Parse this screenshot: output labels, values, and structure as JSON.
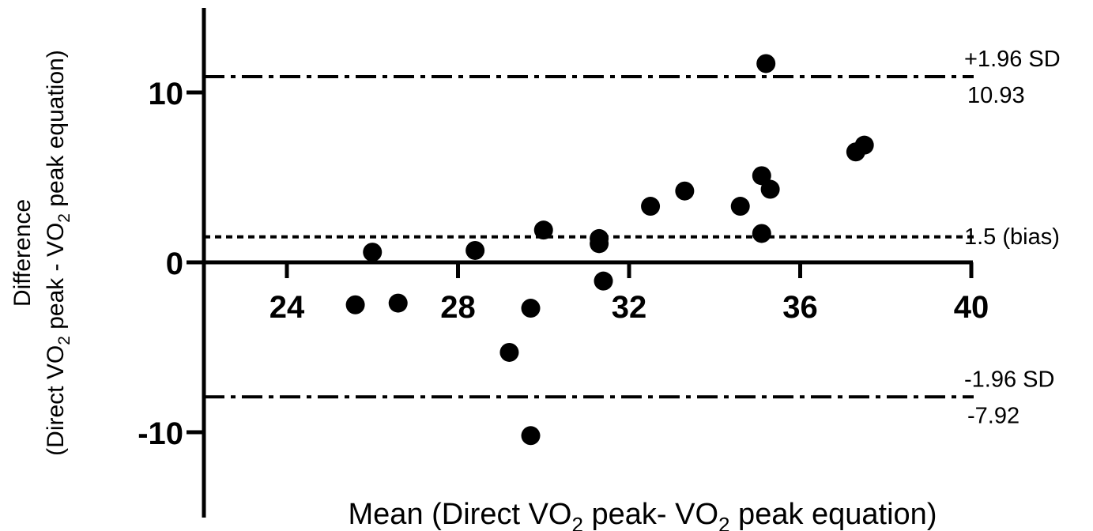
{
  "chart_data": {
    "type": "scatter",
    "title": "",
    "xlabel": {
      "parts": [
        "Mean (Direct VO",
        "2",
        " peak- VO",
        "2",
        " peak equation)"
      ]
    },
    "ylabel": {
      "line1": "Difference",
      "line2_parts": [
        "(Direct VO",
        "2",
        " peak - VO",
        "2",
        " peak equation)"
      ]
    },
    "xlim": [
      22,
      40
    ],
    "ylim": [
      -14,
      15
    ],
    "x_ticks": [
      24,
      28,
      32,
      36,
      40
    ],
    "x_tick_labels": [
      "24",
      "28",
      "32",
      "36",
      "40"
    ],
    "y_ticks": [
      -10,
      0,
      10
    ],
    "y_tick_labels": [
      "-10",
      "0",
      "10"
    ],
    "grid": false,
    "points": [
      {
        "x": 25.6,
        "y": -2.5
      },
      {
        "x": 26.0,
        "y": 0.6
      },
      {
        "x": 26.6,
        "y": -2.4
      },
      {
        "x": 28.4,
        "y": 0.7
      },
      {
        "x": 29.2,
        "y": -5.3
      },
      {
        "x": 29.7,
        "y": -2.7
      },
      {
        "x": 29.7,
        "y": -10.2
      },
      {
        "x": 30.0,
        "y": 1.9
      },
      {
        "x": 31.3,
        "y": 1.4
      },
      {
        "x": 31.3,
        "y": 1.1
      },
      {
        "x": 31.4,
        "y": -1.1
      },
      {
        "x": 32.5,
        "y": 3.3
      },
      {
        "x": 33.3,
        "y": 4.2
      },
      {
        "x": 34.6,
        "y": 3.3
      },
      {
        "x": 35.1,
        "y": 5.1
      },
      {
        "x": 35.1,
        "y": 1.7
      },
      {
        "x": 35.2,
        "y": 11.7
      },
      {
        "x": 35.3,
        "y": 4.3
      },
      {
        "x": 37.3,
        "y": 6.5
      },
      {
        "x": 37.5,
        "y": 6.9
      }
    ],
    "reference_lines": [
      {
        "y": 10.93,
        "style": "dash-dot",
        "labels": [
          "+1.96 SD",
          "10.93"
        ]
      },
      {
        "y": 1.5,
        "style": "dotted",
        "labels": [
          "1.5 (bias)"
        ]
      },
      {
        "y": -7.92,
        "style": "dash-dot",
        "labels": [
          "-1.96 SD",
          "-7.92"
        ]
      }
    ]
  }
}
